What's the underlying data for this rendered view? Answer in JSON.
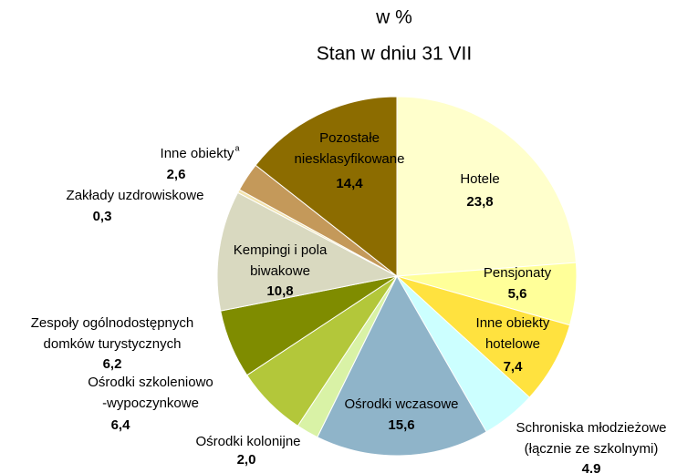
{
  "chart_data": {
    "type": "pie",
    "title": [
      "w %",
      "Stan w dniu 31 VII"
    ],
    "categories": [
      "Hotele",
      "Pensjonaty",
      "Inne obiekty\nhotelowe",
      "Schroniska młodzieżowe\n(łącznie ze szkolnymi)",
      "Ośrodki wczasowe",
      "Ośrodki kolonijne",
      "Ośrodki szkoleniowo\n-wypoczynkowe",
      "Zespoły ogólnodostępnych\ndomków turystycznych",
      "Kempingi i pola\nbiwakowe",
      "Zakłady uzdrowiskowe",
      "Inne obiekty",
      "Pozostałe\nniesklasyfikowane"
    ],
    "notes": [
      null,
      null,
      null,
      null,
      null,
      null,
      null,
      null,
      null,
      null,
      "a",
      null
    ],
    "values": [
      23.8,
      5.6,
      7.4,
      4.9,
      15.6,
      2.0,
      6.4,
      6.2,
      10.8,
      0.3,
      2.6,
      14.4
    ],
    "value_labels": [
      "23,8",
      "5,6",
      "7,4",
      "4,9",
      "15,6",
      "2,0",
      "6,4",
      "6,2",
      "10,8",
      "0,3",
      "2,6",
      "14,4"
    ],
    "colors": [
      "#ffffcc",
      "#ffff99",
      "#ffe23f",
      "#ccffff",
      "#8fb4c9",
      "#d9f2a6",
      "#b3c73a",
      "#7f8c00",
      "#d9d9c0",
      "#f2e4b0",
      "#c4995a",
      "#8c6c00"
    ]
  }
}
